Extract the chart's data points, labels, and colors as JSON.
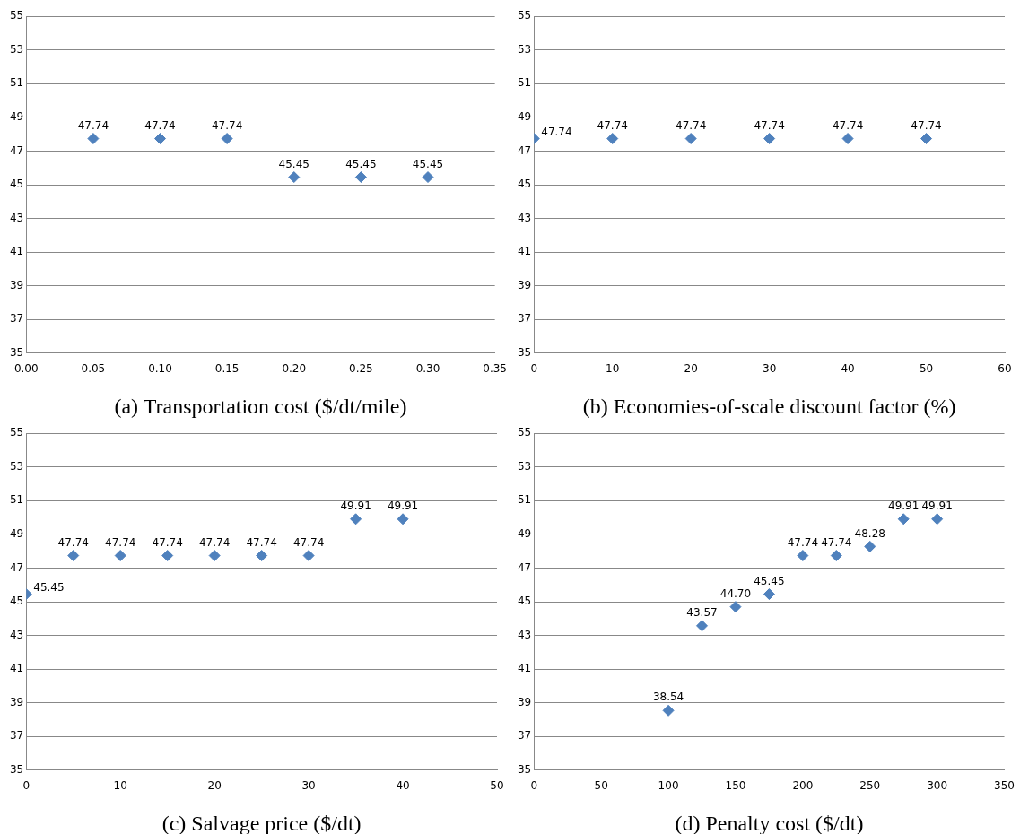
{
  "chart_data": [
    {
      "type": "scatter",
      "xlabel": "(a) Transportation cost ($/dt/mile)",
      "x": [
        0.05,
        0.1,
        0.15,
        0.2,
        0.25,
        0.3
      ],
      "values": [
        47.74,
        47.74,
        47.74,
        45.45,
        45.45,
        45.45
      ],
      "value_labels": [
        "47.74",
        "47.74",
        "47.74",
        "45.45",
        "45.45",
        "45.45"
      ],
      "color": "#4f81bd",
      "marker": "diamond",
      "grid": "y",
      "xlim": [
        0,
        0.35
      ],
      "xticks": [
        {
          "value": 0,
          "label": "0.00"
        },
        {
          "value": 0.05,
          "label": "0.05"
        },
        {
          "value": 0.1,
          "label": "0.10"
        },
        {
          "value": 0.15,
          "label": "0.15"
        },
        {
          "value": 0.2,
          "label": "0.20"
        },
        {
          "value": 0.25,
          "label": "0.25"
        },
        {
          "value": 0.3,
          "label": "0.30"
        },
        {
          "value": 0.35,
          "label": "0.35"
        }
      ],
      "ylim": [
        35,
        55
      ],
      "yticks": [
        35,
        37,
        39,
        41,
        43,
        45,
        47,
        49,
        51,
        53,
        55
      ]
    },
    {
      "type": "scatter",
      "xlabel": "(b) Economies-of-scale discount factor (%)",
      "x": [
        0,
        10,
        20,
        30,
        40,
        50
      ],
      "values": [
        47.74,
        47.74,
        47.74,
        47.74,
        47.74,
        47.74
      ],
      "value_labels": [
        "47.74",
        "47.74",
        "47.74",
        "47.74",
        "47.74",
        "47.74"
      ],
      "color": "#4f81bd",
      "marker": "diamond",
      "grid": "y",
      "xlim": [
        0,
        60
      ],
      "xticks": [
        0,
        10,
        20,
        30,
        40,
        50,
        60
      ],
      "ylim": [
        35,
        55
      ],
      "yticks": [
        35,
        37,
        39,
        41,
        43,
        45,
        47,
        49,
        51,
        53,
        55
      ]
    },
    {
      "type": "scatter",
      "xlabel": "(c) Salvage price ($/dt)",
      "x": [
        0,
        5,
        10,
        15,
        20,
        25,
        30,
        35,
        40
      ],
      "values": [
        45.45,
        47.74,
        47.74,
        47.74,
        47.74,
        47.74,
        47.74,
        49.91,
        49.91
      ],
      "value_labels": [
        "45.45",
        "47.74",
        "47.74",
        "47.74",
        "47.74",
        "47.74",
        "47.74",
        "49.91",
        "49.91"
      ],
      "color": "#4f81bd",
      "marker": "diamond",
      "grid": "y",
      "xlim": [
        0,
        50
      ],
      "xticks": [
        0,
        10,
        20,
        30,
        40,
        50
      ],
      "ylim": [
        35,
        55
      ],
      "yticks": [
        35,
        37,
        39,
        41,
        43,
        45,
        47,
        49,
        51,
        53,
        55
      ]
    },
    {
      "type": "scatter",
      "xlabel": "(d) Penalty cost ($/dt)",
      "x": [
        100,
        125,
        150,
        175,
        200,
        225,
        250,
        275,
        300
      ],
      "values": [
        38.54,
        43.57,
        44.7,
        45.45,
        47.74,
        47.74,
        48.28,
        49.91,
        49.91
      ],
      "value_labels": [
        "38.54",
        "43.57",
        "44.70",
        "45.45",
        "47.74",
        "47.74",
        "48.28",
        "49.91",
        "49.91"
      ],
      "color": "#4f81bd",
      "marker": "diamond",
      "grid": "y",
      "xlim": [
        0,
        350
      ],
      "xticks": [
        0,
        50,
        100,
        150,
        200,
        250,
        300,
        350
      ],
      "ylim": [
        35,
        55
      ],
      "yticks": [
        35,
        37,
        39,
        41,
        43,
        45,
        47,
        49,
        51,
        53,
        55
      ]
    }
  ]
}
